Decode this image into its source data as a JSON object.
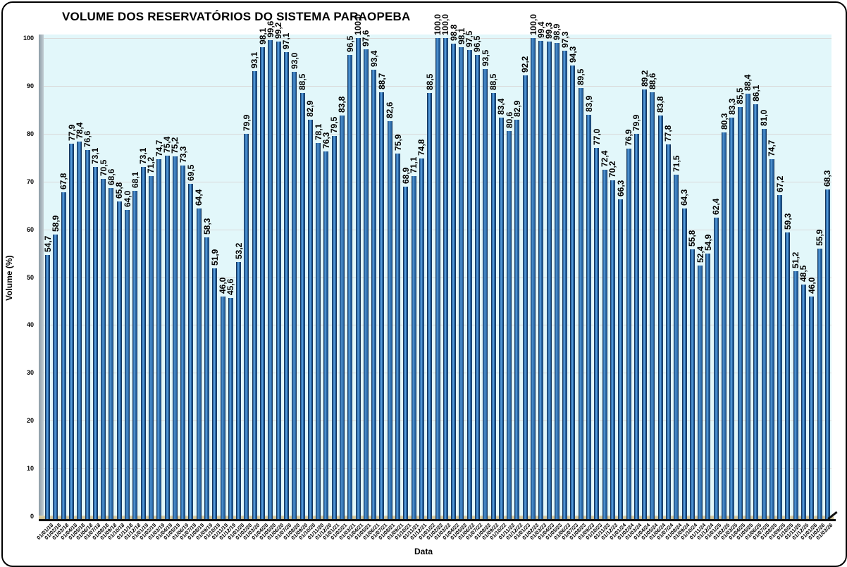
{
  "chart": {
    "title": "VOLUME DOS RESERVATÓRIOS DO SISTEMA PARAOPEBA",
    "xlabel": "Data",
    "ylabel": "Volume (%)"
  },
  "chart_data": {
    "type": "bar",
    "title": "VOLUME DOS RESERVATÓRIOS DO SISTEMA PARAOPEBA",
    "xlabel": "Data",
    "ylabel": "Volume (%)",
    "ylim": [
      0,
      100
    ],
    "y_ticks": [
      "0",
      "10",
      "20",
      "30",
      "40",
      "50",
      "60",
      "70",
      "80",
      "90",
      "100"
    ],
    "grid": true,
    "legend": "none",
    "decimal_separator": ",",
    "plot_bg_color": "#e2f7fa",
    "gridline_color": "#d9d9d9",
    "bar_fill_color": "#2f6fad",
    "bar_edge_color": "#16365c",
    "categories": [
      "01/01/18",
      "01/02/18",
      "01/03/18",
      "01/04/18",
      "01/05/18",
      "01/06/18",
      "01/07/18",
      "01/08/18",
      "01/09/18",
      "01/10/18",
      "01/11/18",
      "01/12/18",
      "01/01/19",
      "01/02/19",
      "01/03/19",
      "01/04/19",
      "01/05/19",
      "01/06/19",
      "01/07/19",
      "01/08/19",
      "01/09/19",
      "01/10/19",
      "01/11/19",
      "01/12/19",
      "01/01/20",
      "01/02/20",
      "01/03/20",
      "01/04/20",
      "01/05/20",
      "01/06/20",
      "01/07/20",
      "01/08/20",
      "01/09/20",
      "01/10/20",
      "01/11/20",
      "01/12/20",
      "01/01/21",
      "01/02/21",
      "01/03/21",
      "01/04/21",
      "01/05/21",
      "01/06/21",
      "01/07/21",
      "01/08/21",
      "01/09/21",
      "01/10/21",
      "01/11/21",
      "01/12/21",
      "01/01/22",
      "01/02/22",
      "01/03/22",
      "01/04/22",
      "01/05/22",
      "01/06/22",
      "01/07/22",
      "01/08/22",
      "01/09/22",
      "01/10/22",
      "01/11/22",
      "01/12/22",
      "01/01/23",
      "01/02/23",
      "01/03/23",
      "01/04/23",
      "01/05/23",
      "01/06/23",
      "01/07/23",
      "01/08/23",
      "01/09/23",
      "01/10/23",
      "01/11/23",
      "01/12/23",
      "01/01/24",
      "01/02/24",
      "01/03/24",
      "01/04/24",
      "01/05/24",
      "01/06/24",
      "01/07/24",
      "01/08/24",
      "01/09/24",
      "01/10/24",
      "01/11/24",
      "01/12/24",
      "01/01/25",
      "01/02/25",
      "01/03/25",
      "01/04/25",
      "01/05/25",
      "01/06/25",
      "01/07/25",
      "01/08/25",
      "01/09/25",
      "01/10/25",
      "01/11/25",
      "01/12/25",
      "01/01/26",
      "01/02/26",
      "01/03/26"
    ],
    "values": [
      54.7,
      58.9,
      67.8,
      77.9,
      78.4,
      76.6,
      73.1,
      70.5,
      68.6,
      65.8,
      64.0,
      68.1,
      73.1,
      71.2,
      74.7,
      75.4,
      75.2,
      73.3,
      69.5,
      64.4,
      58.3,
      51.9,
      46.0,
      45.6,
      53.2,
      79.9,
      93.1,
      98.1,
      99.6,
      99.2,
      97.1,
      93.0,
      88.5,
      82.9,
      78.1,
      76.3,
      79.5,
      83.8,
      96.5,
      100.0,
      97.6,
      93.4,
      88.7,
      82.6,
      75.9,
      68.9,
      71.1,
      74.8,
      88.5,
      100.0,
      100.0,
      98.8,
      98.1,
      97.5,
      96.5,
      93.5,
      88.5,
      83.4,
      80.6,
      82.9,
      92.2,
      100.0,
      99.4,
      99.3,
      98.9,
      97.3,
      94.3,
      89.5,
      83.9,
      77.0,
      72.4,
      70.2,
      66.3,
      76.9,
      79.9,
      89.2,
      88.6,
      83.8,
      77.8,
      71.5,
      64.3,
      55.8,
      52.4,
      54.9,
      62.4,
      80.3,
      83.3,
      85.5,
      88.4,
      86.1,
      81.0,
      74.7,
      67.2,
      59.3,
      51.2,
      48.5,
      46.0,
      55.9,
      68.3
    ],
    "value_labels": [
      "54,7",
      "58,9",
      "67,8",
      "77,9",
      "78,4",
      "76,6",
      "73,1",
      "70,5",
      "68,6",
      "65,8",
      "64,0",
      "68,1",
      "73,1",
      "71,2",
      "74,7",
      "75,4",
      "75,2",
      "73,3",
      "69,5",
      "64,4",
      "58,3",
      "51,9",
      "46,0",
      "45,6",
      "53,2",
      "79,9",
      "93,1",
      "98,1",
      "99,6",
      "99,2",
      "97,1",
      "93,0",
      "88,5",
      "82,9",
      "78,1",
      "76,3",
      "79,5",
      "83,8",
      "96,5",
      "100,0",
      "97,6",
      "93,4",
      "88,7",
      "82,6",
      "75,9",
      "68,9",
      "71,1",
      "74,8",
      "88,5",
      "100,0",
      "100,0",
      "98,8",
      "98,1",
      "97,5",
      "96,5",
      "93,5",
      "88,5",
      "83,4",
      "80,6",
      "82,9",
      "92,2",
      "100,0",
      "99,4",
      "99,3",
      "98,9",
      "97,3",
      "94,3",
      "89,5",
      "83,9",
      "77,0",
      "72,4",
      "70,2",
      "66,3",
      "76,9",
      "79,9",
      "89,2",
      "88,6",
      "83,8",
      "77,8",
      "71,5",
      "64,3",
      "55,8",
      "52,4",
      "54,9",
      "62,4",
      "80,3",
      "83,3",
      "85,5",
      "88,4",
      "86,1",
      "81,0",
      "74,7",
      "67,2",
      "59,3",
      "51,2",
      "48,5",
      "46,0",
      "55,9",
      "68,3"
    ]
  }
}
